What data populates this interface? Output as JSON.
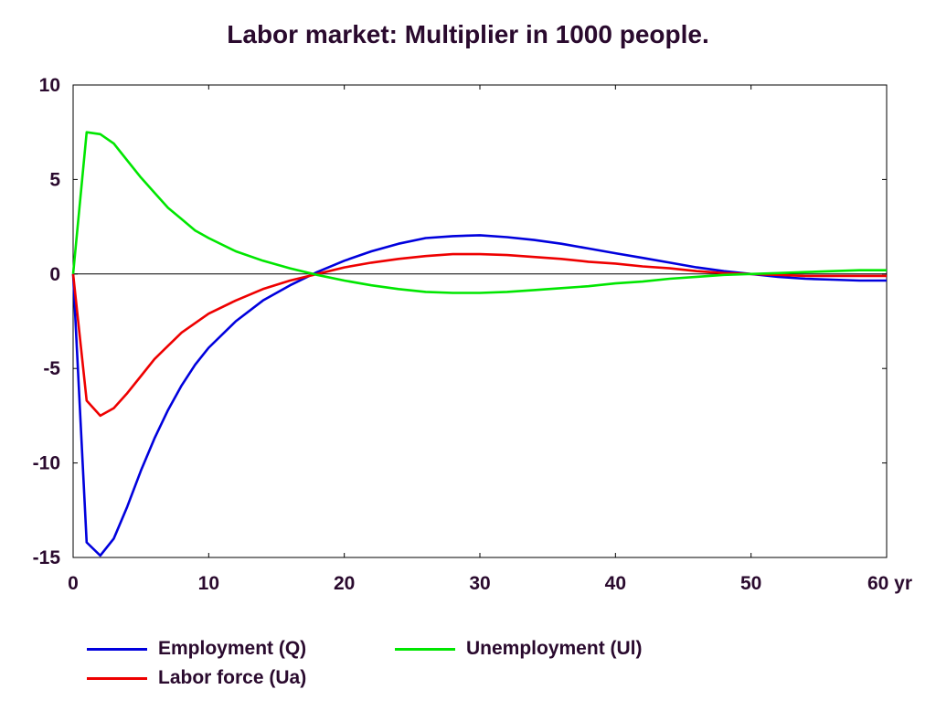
{
  "chart_data": {
    "type": "line",
    "title": "Labor market: Multiplier in 1000 people.",
    "xlabel": "",
    "ylabel": "",
    "xlim": [
      0,
      60
    ],
    "ylim": [
      -15,
      10
    ],
    "x_ticks": [
      0,
      10,
      20,
      30,
      40,
      50,
      60
    ],
    "x_tick_labels": [
      "0",
      "10",
      "20",
      "30",
      "40",
      "50",
      "60 yr"
    ],
    "y_ticks": [
      10,
      5,
      0,
      -5,
      -10,
      -15
    ],
    "y_tick_labels": [
      "10",
      "5",
      "0",
      "-5",
      "-10",
      "-15"
    ],
    "zero_line": true,
    "grid": false,
    "legend_position": "bottom",
    "x": [
      0,
      1,
      2,
      3,
      4,
      5,
      6,
      7,
      8,
      9,
      10,
      12,
      14,
      16,
      18,
      20,
      22,
      24,
      26,
      28,
      30,
      32,
      34,
      36,
      38,
      40,
      42,
      44,
      46,
      48,
      50,
      52,
      54,
      56,
      58,
      60
    ],
    "series": [
      {
        "name": "Employment (Q)",
        "color": "#0000dd",
        "values": [
          0,
          -14.2,
          -14.9,
          -14.0,
          -12.3,
          -10.4,
          -8.7,
          -7.2,
          -5.9,
          -4.8,
          -3.9,
          -2.5,
          -1.4,
          -0.6,
          0.1,
          0.7,
          1.2,
          1.6,
          1.9,
          2.0,
          2.05,
          1.95,
          1.8,
          1.6,
          1.35,
          1.1,
          0.85,
          0.6,
          0.35,
          0.15,
          0.0,
          -0.15,
          -0.25,
          -0.3,
          -0.35,
          -0.35
        ]
      },
      {
        "name": "Labor force (Ua)",
        "color": "#ee0000",
        "values": [
          0,
          -6.7,
          -7.5,
          -7.1,
          -6.3,
          -5.4,
          -4.5,
          -3.8,
          -3.1,
          -2.6,
          -2.1,
          -1.4,
          -0.8,
          -0.35,
          0.0,
          0.35,
          0.6,
          0.8,
          0.95,
          1.05,
          1.05,
          1.0,
          0.9,
          0.8,
          0.65,
          0.55,
          0.4,
          0.3,
          0.15,
          0.05,
          0.0,
          -0.05,
          -0.1,
          -0.1,
          -0.1,
          -0.1
        ]
      },
      {
        "name": "Unemployment (Ul)",
        "color": "#00e600",
        "values": [
          0,
          7.5,
          7.4,
          6.9,
          6.0,
          5.1,
          4.3,
          3.5,
          2.9,
          2.3,
          1.9,
          1.2,
          0.7,
          0.3,
          -0.05,
          -0.35,
          -0.6,
          -0.8,
          -0.95,
          -1.0,
          -1.0,
          -0.95,
          -0.85,
          -0.75,
          -0.65,
          -0.5,
          -0.4,
          -0.25,
          -0.15,
          -0.05,
          0.0,
          0.05,
          0.1,
          0.15,
          0.2,
          0.2
        ]
      }
    ]
  }
}
